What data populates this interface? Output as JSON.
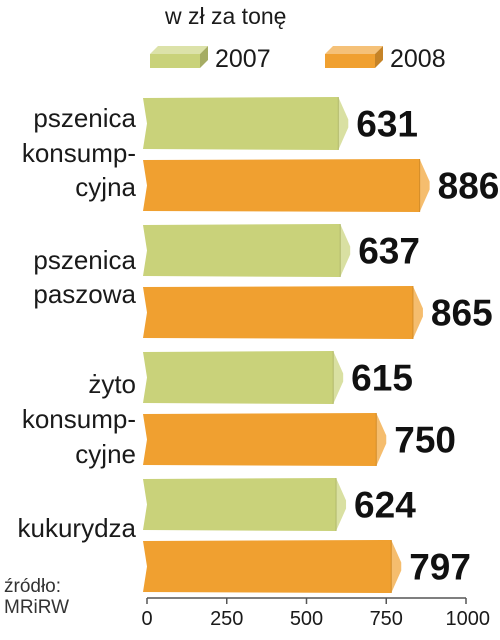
{
  "chart_data": {
    "type": "bar",
    "orientation": "horizontal",
    "unit_label": "w zł za tonę",
    "categories": [
      [
        "pszenica",
        "konsump-",
        "cyjna"
      ],
      [
        "pszenica",
        "paszowa"
      ],
      [
        "żyto",
        "konsump-",
        "cyjne"
      ],
      [
        "kukurydza"
      ]
    ],
    "series": [
      {
        "name": "2007",
        "color": "#c9d27a",
        "values": [
          631,
          637,
          615,
          624
        ]
      },
      {
        "name": "2008",
        "color": "#f0a030",
        "values": [
          886,
          865,
          750,
          797
        ]
      }
    ],
    "xlim": [
      0,
      1000
    ],
    "xticks": [
      0,
      250,
      500,
      750,
      1000
    ],
    "grid": false,
    "legend_position": "top",
    "source": [
      "źródło:",
      "MRiRW"
    ]
  }
}
